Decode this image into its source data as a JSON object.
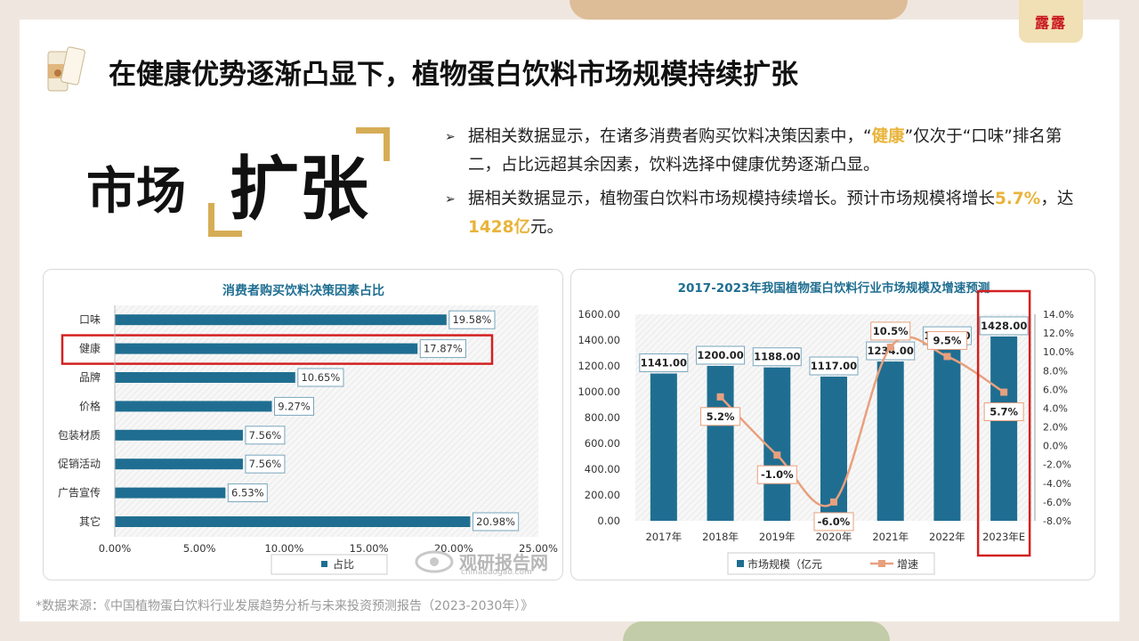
{
  "title": "在健康优势逐渐凸显下，植物蛋白饮料市场规模持续扩张",
  "logo_text": "露露",
  "big_word_1": "市场",
  "big_word_2": "扩张",
  "bullets": [
    {
      "parts": [
        "据相关数据显示，在诸多消费者购买饮料决策因素中，“",
        "健康",
        "”仅次于“口味”排名第二，占比远超其余因素，饮料选择中健康优势逐渐凸显。"
      ]
    },
    {
      "parts": [
        "据相关数据显示，植物蛋白饮料市场规模持续增长。预计市场规模将增长",
        "5.7%",
        "，达",
        "1428亿",
        "元。"
      ]
    }
  ],
  "source": "*数据来源：《中国植物蛋白饮料行业发展趋势分析与未来投资预测报告（2023-2030年）》",
  "watermark": {
    "main": "观研报告网",
    "sub": "chinabaogao.com"
  },
  "chart_data": [
    {
      "type": "bar",
      "orientation": "horizontal",
      "title": "消费者购买饮料决策因素占比",
      "categories": [
        "口味",
        "健康",
        "品牌",
        "价格",
        "包装材质",
        "促销活动",
        "广告宣传",
        "其它"
      ],
      "series": [
        {
          "name": "占比",
          "values": [
            19.58,
            17.87,
            10.65,
            9.27,
            7.56,
            7.56,
            6.53,
            20.98
          ]
        }
      ],
      "value_labels": [
        "19.58%",
        "17.87%",
        "10.65%",
        "9.27%",
        "7.56%",
        "7.56%",
        "6.53%",
        "20.98%"
      ],
      "xlim": [
        0,
        25
      ],
      "x_ticks": [
        "0.00%",
        "5.00%",
        "10.00%",
        "15.00%",
        "20.00%",
        "25.00%"
      ],
      "highlight_category": "健康",
      "bar_color": "#1f6e91",
      "legend_position": "bottom"
    },
    {
      "type": "bar+line",
      "title": "2017-2023年我国植物蛋白饮料行业市场规模及增速预测",
      "categories": [
        "2017年",
        "2018年",
        "2019年",
        "2020年",
        "2021年",
        "2022年",
        "2023年E"
      ],
      "series": [
        {
          "name": "市场规模（亿元",
          "type": "bar",
          "axis": "left",
          "values": [
            1141.0,
            1200.0,
            1188.0,
            1117.0,
            1234.0,
            1351.0,
            1428.0
          ],
          "labels": [
            "1141.00",
            "1200.00",
            "1188.00",
            "1117.00",
            "1234.00",
            "1351.00",
            "1428.00"
          ],
          "color": "#1f6e91"
        },
        {
          "name": "增速",
          "type": "line",
          "axis": "right",
          "values": [
            null,
            5.2,
            -1.0,
            -6.0,
            10.5,
            9.5,
            5.7
          ],
          "labels": [
            "",
            "5.2%",
            "-1.0%",
            "-6.0%",
            "10.5%",
            "9.5%",
            "5.7%"
          ],
          "color": "#e8a07e"
        }
      ],
      "ylim_left": [
        0,
        1600
      ],
      "left_ticks": [
        "0.00",
        "200.00",
        "400.00",
        "600.00",
        "800.00",
        "1000.00",
        "1200.00",
        "1400.00",
        "1600.00"
      ],
      "ylim_right": [
        -8,
        14
      ],
      "right_ticks": [
        "-8.0%",
        "-6.0%",
        "-4.0%",
        "-2.0%",
        "0.0%",
        "2.0%",
        "4.0%",
        "6.0%",
        "8.0%",
        "10.0%",
        "12.0%",
        "14.0%"
      ],
      "highlight_category": "2023年E",
      "legend_position": "bottom"
    }
  ]
}
